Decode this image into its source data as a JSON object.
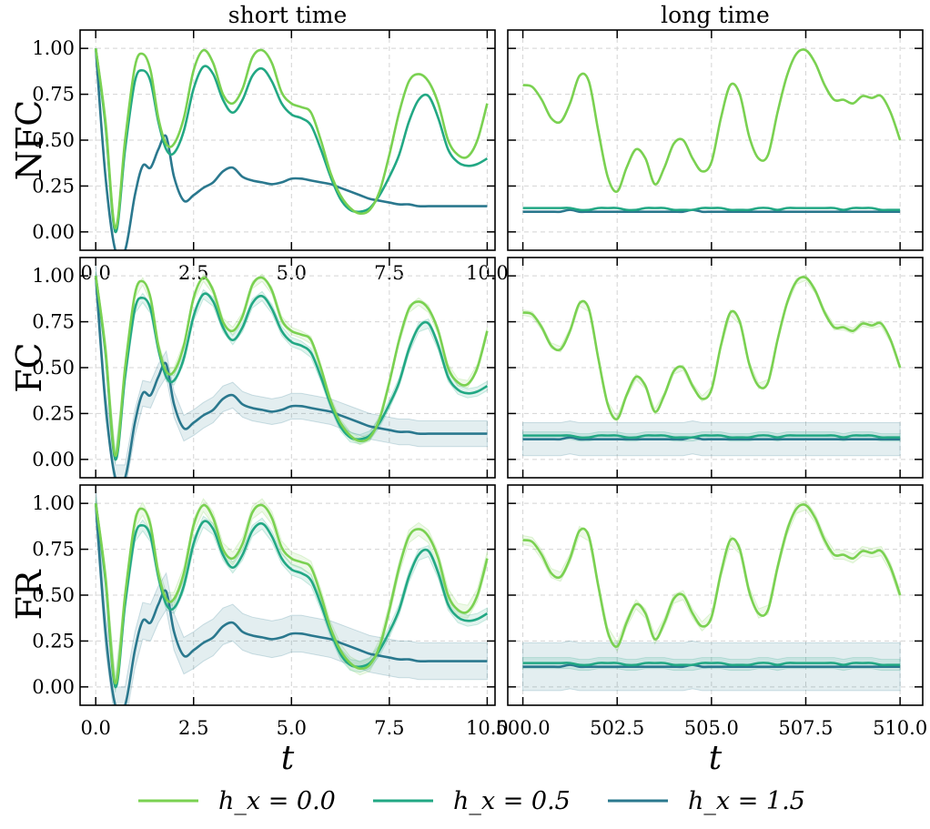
{
  "chart_data": [
    {
      "type": "line",
      "row_label": "NFC",
      "col_title": "short time",
      "window": "short",
      "band": "none",
      "xlim": [
        -0.4,
        10.2
      ],
      "ylim": [
        -0.1,
        1.1
      ],
      "xticks": [
        "0.0",
        "2.5",
        "5.0",
        "7.5",
        "10.0"
      ],
      "yticks": [
        "0.00",
        "0.25",
        "0.50",
        "0.75",
        "1.00"
      ],
      "series": [
        "h_x = 0.0",
        "h_x = 0.5",
        "h_x = 1.5"
      ]
    },
    {
      "type": "line",
      "row_label": "",
      "col_title": "long time",
      "window": "long",
      "band": "none",
      "xlim": [
        499.6,
        510.6
      ],
      "ylim": [
        -0.1,
        1.1
      ],
      "xticks": [],
      "yticks": [],
      "series": [
        "h_x = 0.0",
        "h_x = 0.5",
        "h_x = 1.5"
      ]
    },
    {
      "type": "line",
      "row_label": "FC",
      "col_title": "",
      "window": "short",
      "band": "FC",
      "xlim": [
        -0.4,
        10.2
      ],
      "ylim": [
        -0.1,
        1.1
      ],
      "xticks": [],
      "yticks": [
        "0.00",
        "0.25",
        "0.50",
        "0.75",
        "1.00"
      ],
      "series": [
        "h_x = 0.0",
        "h_x = 0.5",
        "h_x = 1.5"
      ]
    },
    {
      "type": "line",
      "row_label": "",
      "col_title": "",
      "window": "long",
      "band": "FC",
      "xlim": [
        499.6,
        510.6
      ],
      "ylim": [
        -0.1,
        1.1
      ],
      "xticks": [],
      "yticks": [],
      "series": [
        "h_x = 0.0",
        "h_x = 0.5",
        "h_x = 1.5"
      ]
    },
    {
      "type": "line",
      "row_label": "FR",
      "col_title": "",
      "window": "short",
      "band": "FR",
      "xlim": [
        -0.4,
        10.2
      ],
      "ylim": [
        -0.1,
        1.1
      ],
      "xticks": [
        "0.0",
        "2.5",
        "5.0",
        "7.5",
        "10.0"
      ],
      "yticks": [
        "0.00",
        "0.25",
        "0.50",
        "0.75",
        "1.00"
      ],
      "xlabel": "t",
      "series": [
        "h_x = 0.0",
        "h_x = 0.5",
        "h_x = 1.5"
      ]
    },
    {
      "type": "line",
      "row_label": "",
      "col_title": "",
      "window": "long",
      "band": "FR",
      "xlim": [
        499.6,
        510.6
      ],
      "ylim": [
        -0.1,
        1.1
      ],
      "xticks": [
        "500.0",
        "502.5",
        "505.0",
        "507.5",
        "510.0"
      ],
      "yticks": [],
      "xlabel": "t",
      "series": [
        "h_x = 0.0",
        "h_x = 0.5",
        "h_x = 1.5"
      ]
    }
  ],
  "short_series": {
    "x": [
      0,
      0.25,
      0.5,
      0.75,
      1.0,
      1.2,
      1.4,
      1.6,
      1.8,
      2.0,
      2.25,
      2.5,
      2.75,
      3.0,
      3.25,
      3.5,
      3.75,
      4.0,
      4.25,
      4.5,
      4.75,
      5.0,
      5.25,
      5.5,
      5.75,
      6.0,
      6.25,
      6.5,
      6.75,
      7.0,
      7.25,
      7.5,
      7.75,
      8.0,
      8.25,
      8.5,
      8.75,
      9.0,
      9.25,
      9.5,
      9.75,
      10.0
    ],
    "h_x = 0.0": [
      1.0,
      0.6,
      0.02,
      0.5,
      0.9,
      0.97,
      0.88,
      0.62,
      0.48,
      0.48,
      0.62,
      0.88,
      0.99,
      0.92,
      0.75,
      0.7,
      0.78,
      0.95,
      0.99,
      0.92,
      0.76,
      0.7,
      0.68,
      0.65,
      0.5,
      0.32,
      0.2,
      0.13,
      0.1,
      0.12,
      0.22,
      0.42,
      0.65,
      0.82,
      0.86,
      0.82,
      0.7,
      0.5,
      0.42,
      0.41,
      0.5,
      0.7
    ],
    "h_x = 0.5": [
      1.0,
      0.58,
      0.0,
      0.45,
      0.82,
      0.88,
      0.82,
      0.6,
      0.45,
      0.43,
      0.55,
      0.78,
      0.9,
      0.86,
      0.72,
      0.65,
      0.72,
      0.85,
      0.89,
      0.82,
      0.7,
      0.64,
      0.62,
      0.58,
      0.45,
      0.3,
      0.18,
      0.12,
      0.11,
      0.13,
      0.2,
      0.3,
      0.42,
      0.6,
      0.72,
      0.74,
      0.62,
      0.45,
      0.38,
      0.36,
      0.37,
      0.4
    ],
    "h_x = 1.5": [
      1.0,
      0.3,
      -0.1,
      -0.1,
      0.2,
      0.36,
      0.35,
      0.45,
      0.52,
      0.3,
      0.17,
      0.2,
      0.24,
      0.27,
      0.33,
      0.35,
      0.3,
      0.28,
      0.27,
      0.26,
      0.27,
      0.29,
      0.29,
      0.28,
      0.27,
      0.26,
      0.24,
      0.22,
      0.2,
      0.18,
      0.17,
      0.16,
      0.15,
      0.15,
      0.14,
      0.14,
      0.14,
      0.14,
      0.14,
      0.14,
      0.14,
      0.14
    ]
  },
  "long_series": {
    "x": [
      500.0,
      500.25,
      500.5,
      500.75,
      501.0,
      501.25,
      501.5,
      501.75,
      502.0,
      502.25,
      502.5,
      502.75,
      503.0,
      503.25,
      503.5,
      503.75,
      504.0,
      504.25,
      504.5,
      504.75,
      505.0,
      505.25,
      505.5,
      505.75,
      506.0,
      506.25,
      506.5,
      506.75,
      507.0,
      507.25,
      507.5,
      507.75,
      508.0,
      508.25,
      508.5,
      508.75,
      509.0,
      509.25,
      509.5,
      509.75,
      510.0
    ],
    "h_x = 0.0": [
      0.8,
      0.79,
      0.72,
      0.62,
      0.6,
      0.7,
      0.85,
      0.82,
      0.55,
      0.3,
      0.22,
      0.35,
      0.45,
      0.4,
      0.26,
      0.35,
      0.48,
      0.5,
      0.4,
      0.33,
      0.38,
      0.62,
      0.8,
      0.75,
      0.52,
      0.4,
      0.42,
      0.65,
      0.85,
      0.97,
      0.99,
      0.92,
      0.8,
      0.72,
      0.72,
      0.7,
      0.74,
      0.73,
      0.74,
      0.65,
      0.5
    ],
    "h_x = 0.5": [
      0.13,
      0.13,
      0.13,
      0.13,
      0.13,
      0.13,
      0.12,
      0.12,
      0.13,
      0.13,
      0.13,
      0.12,
      0.12,
      0.13,
      0.13,
      0.13,
      0.12,
      0.12,
      0.12,
      0.13,
      0.13,
      0.13,
      0.12,
      0.12,
      0.12,
      0.13,
      0.13,
      0.12,
      0.13,
      0.13,
      0.13,
      0.13,
      0.13,
      0.13,
      0.12,
      0.13,
      0.13,
      0.13,
      0.12,
      0.12,
      0.12
    ],
    "h_x = 1.5": [
      0.11,
      0.11,
      0.11,
      0.11,
      0.11,
      0.12,
      0.11,
      0.11,
      0.11,
      0.11,
      0.11,
      0.11,
      0.11,
      0.11,
      0.11,
      0.11,
      0.11,
      0.11,
      0.12,
      0.11,
      0.11,
      0.11,
      0.11,
      0.11,
      0.11,
      0.11,
      0.11,
      0.11,
      0.11,
      0.11,
      0.11,
      0.11,
      0.11,
      0.11,
      0.11,
      0.11,
      0.11,
      0.11,
      0.11,
      0.11,
      0.11
    ]
  },
  "bands": {
    "FC": {
      "short": [
        0.02,
        0.025,
        0.07
      ],
      "long": [
        0.015,
        0.02,
        0.09
      ]
    },
    "FR": {
      "short": [
        0.035,
        0.03,
        0.1
      ],
      "long": [
        0.025,
        0.03,
        0.13
      ]
    }
  },
  "legend": {
    "entries": [
      {
        "series": "h_x = 0.0",
        "label": "h_x = 0.0",
        "color": "#7ad151"
      },
      {
        "series": "h_x = 0.5",
        "label": "h_x = 0.5",
        "color": "#22a884"
      },
      {
        "series": "h_x = 1.5",
        "label": "h_x = 1.5",
        "color": "#2a788e"
      }
    ]
  },
  "axes": {
    "xlabel": "t"
  }
}
